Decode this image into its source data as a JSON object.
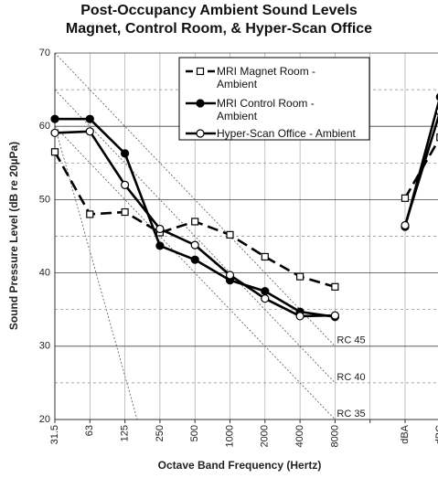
{
  "chart_data": {
    "type": "line",
    "title": "Post-Occupancy Ambient Sound Levels\nMagnet, Control Room, & Hyper-Scan Office",
    "xlabel": "Octave Band Frequency (Hertz)",
    "ylabel": "Sound Pressure Level (dB re 20µPa)",
    "categories": [
      "31.5",
      "63",
      "125",
      "250",
      "500",
      "1000",
      "2000",
      "4000",
      "8000",
      null,
      "dBA",
      "dBC"
    ],
    "ylim": [
      20,
      70
    ],
    "yticks": [
      20,
      30,
      40,
      50,
      60,
      70
    ],
    "yminor": [
      25,
      35,
      45,
      55,
      65
    ],
    "grid": true,
    "legend": "upper right",
    "series": [
      {
        "name": "MRI Magnet Room - Ambient",
        "color": "#000000",
        "dash": true,
        "marker": "square-open",
        "values": [
          56.5,
          48,
          48.3,
          45.5,
          47,
          45.2,
          42.2,
          39.5,
          38.1,
          null,
          50.2,
          58.5
        ]
      },
      {
        "name": "MRI Control Room - Ambient",
        "color": "#000000",
        "dash": false,
        "marker": "circle-filled",
        "values": [
          61,
          61,
          56.3,
          43.7,
          41.8,
          39,
          37.5,
          34.7,
          34,
          null,
          46.3,
          64
        ]
      },
      {
        "name": "Hyper-Scan Office - Ambient",
        "color": "#000000",
        "dash": false,
        "marker": "circle-open",
        "values": [
          59.1,
          59.3,
          52,
          46,
          43.8,
          39.7,
          36.5,
          34.1,
          34.2,
          null,
          46.5,
          62
        ]
      }
    ],
    "rc_lines": [
      {
        "label": "RC 45",
        "values": [
          70,
          65,
          60,
          55,
          50,
          45,
          40,
          35,
          30
        ]
      },
      {
        "label": "RC 40",
        "values": [
          65,
          60,
          55,
          50,
          45,
          40,
          35,
          30,
          25
        ]
      },
      {
        "label": "RC 35",
        "values": [
          60,
          55,
          50,
          45,
          40,
          35,
          30,
          25,
          20
        ]
      }
    ]
  }
}
